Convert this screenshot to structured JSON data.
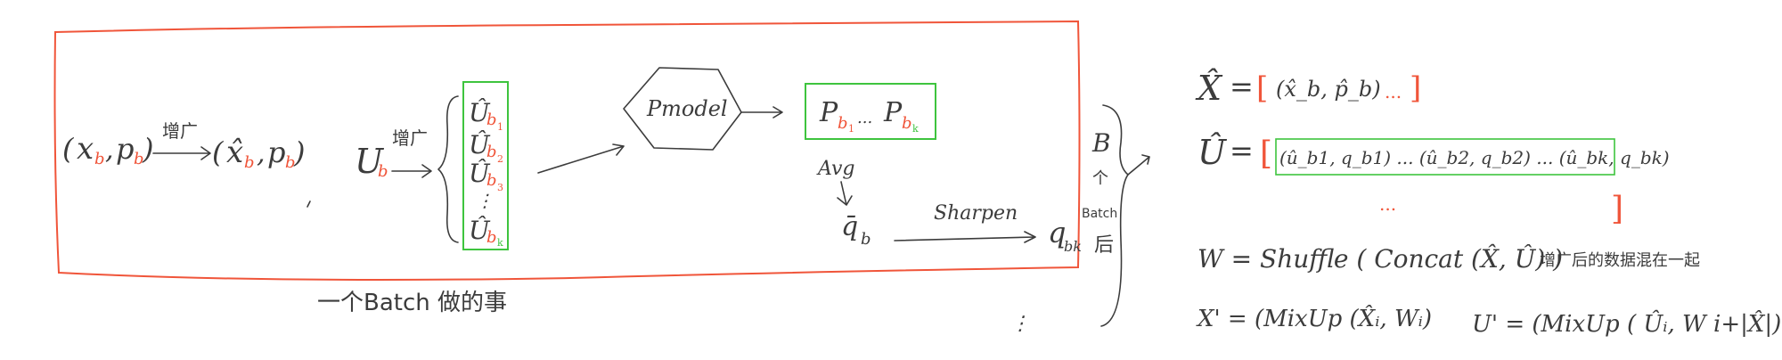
{
  "left_panel": {
    "x_pair": {
      "open": "(",
      "x": "x",
      "x_sub": "b",
      "comma": ",",
      "p": "p",
      "p_sub": "b",
      "close": ")"
    },
    "augment_label_1": "增广",
    "x_hat_pair": {
      "open": "(",
      "x": "x̂",
      "x_sub": "b",
      "comma": ",",
      "p": "p",
      "p_sub": "b",
      "close": ")"
    },
    "u": "U",
    "u_sub": "b",
    "augment_label_2": "增广",
    "u_hat_list": [
      {
        "u": "Û",
        "sub": "b",
        "idx": "1"
      },
      {
        "u": "Û",
        "sub": "b",
        "idx": "2"
      },
      {
        "u": "Û",
        "sub": "b",
        "idx": "3"
      },
      {
        "u": "⋮",
        "sub": "",
        "idx": ""
      },
      {
        "u": "Û",
        "sub": "b",
        "idx": "k"
      }
    ],
    "model_label": "Pmodel",
    "p_list": {
      "first": "P",
      "first_sub": "b",
      "first_idx": "1",
      "dots": "...",
      "last": "P",
      "last_sub": "b",
      "last_idx": "k"
    },
    "avg_label": "Avg",
    "q_bar": "q̄",
    "q_bar_sub": "b",
    "sharpen_label": "Sharpen",
    "q_out": "q",
    "q_out_sub": "bk",
    "caption": "一个Batch 做的事"
  },
  "brace_note": {
    "b": "B",
    "ge": "个",
    "batch": "Batch",
    "hou": "后",
    "dots": "⋮"
  },
  "right_panel": {
    "line_x_hat": {
      "lhs": "X̂",
      "eq": "=",
      "rhs_open": "[",
      "pair": "(x̂_b, p̂_b)",
      "dots": "...",
      "rhs_close": "]"
    },
    "line_u_hat": {
      "lhs": "Û",
      "eq": "=",
      "open": "[",
      "inner": "(û_b1, q_b1) ... (û_b2, q_b2) ... (û_bk, q_bk)",
      "dots2": "...",
      "close": "]"
    },
    "line_w": {
      "text": "W = Shuffle ( Concat (X̂, Û) )",
      "note": "增广后的数据混在一起"
    },
    "line_x_prime": {
      "text": "X' = (MixUp (X̂ᵢ, Wᵢ)"
    },
    "line_u_prime": {
      "text": "U' = (MixUp ( Ûᵢ, W i+|X̂|)"
    }
  },
  "colors": {
    "ink": "#3c3c3c",
    "red": "#f0553a",
    "green": "#3ec43e"
  }
}
